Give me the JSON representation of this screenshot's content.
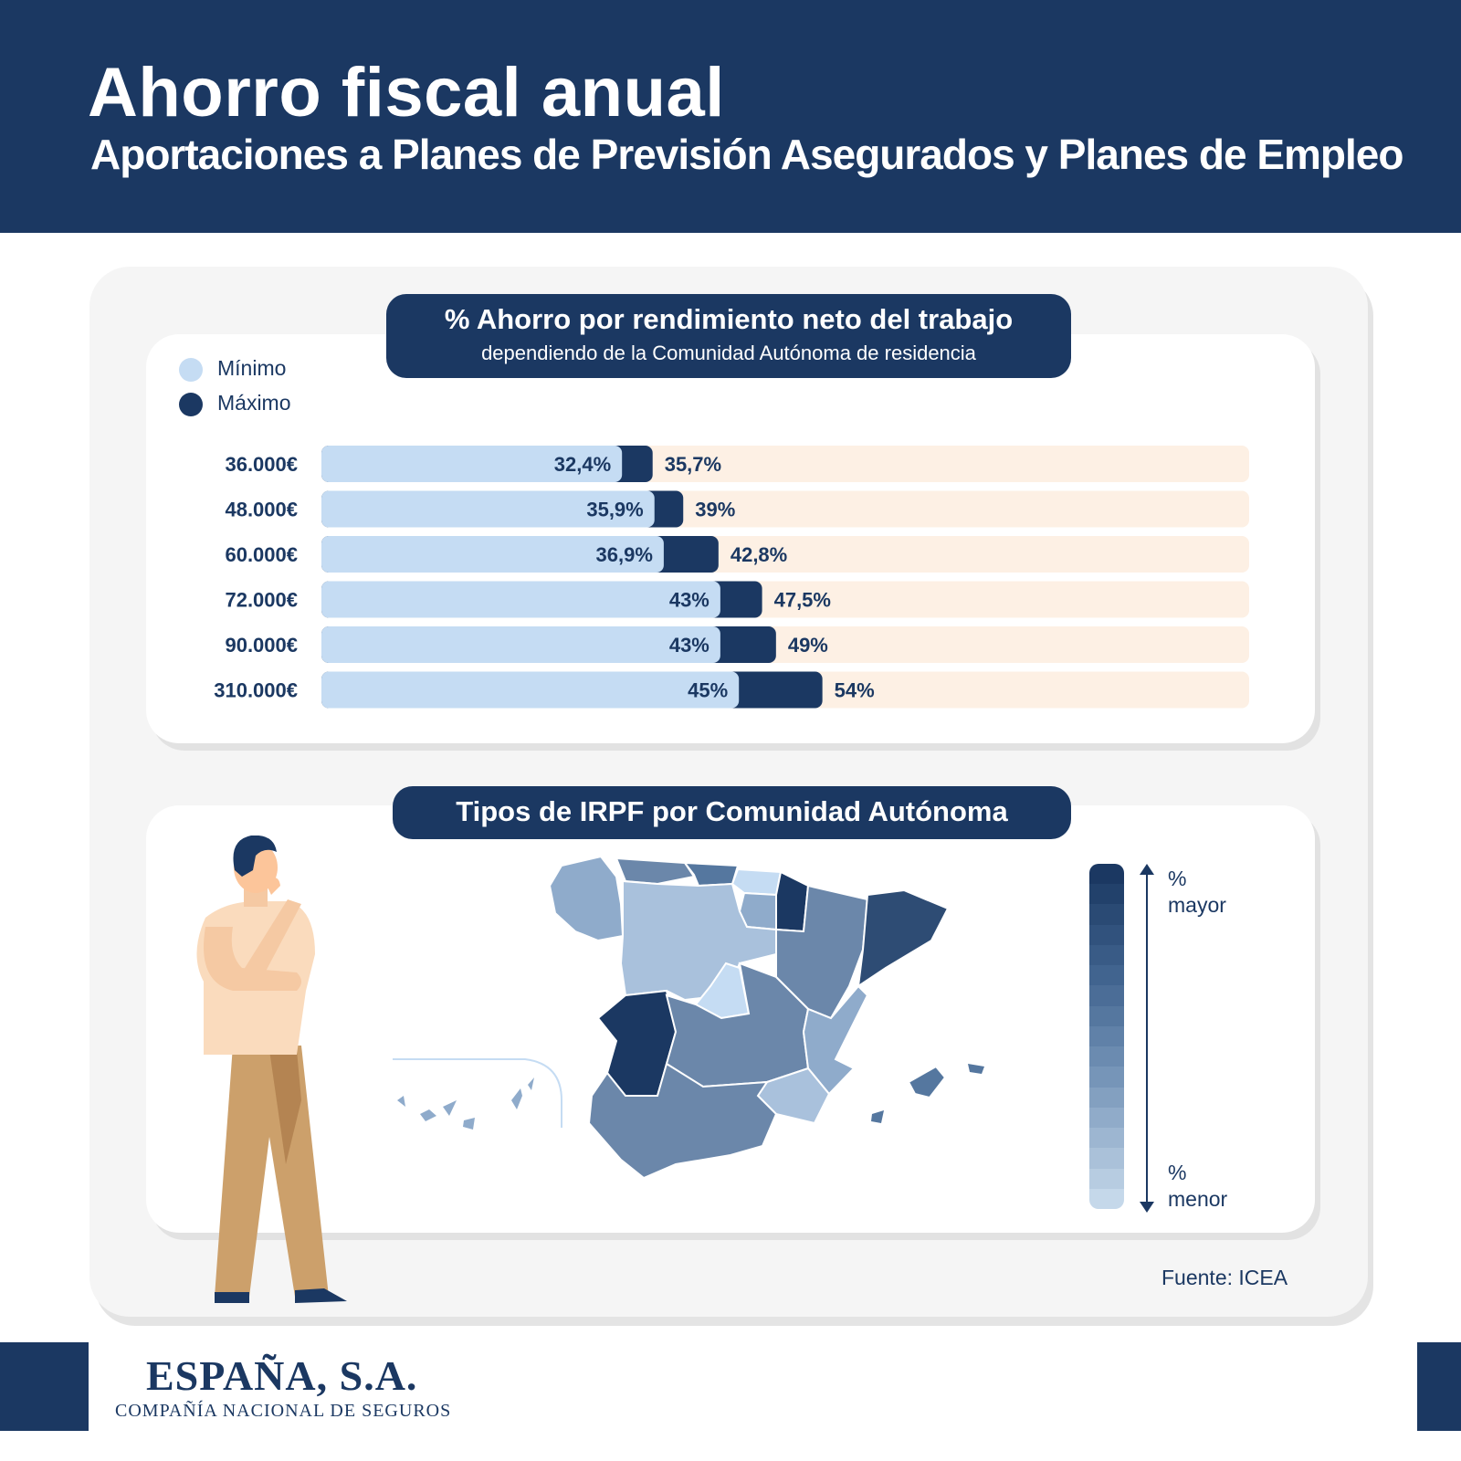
{
  "header": {
    "title": "Ahorro fiscal anual",
    "subtitle": "Aportaciones a Planes de Previsión Asegurados y Planes de Empleo"
  },
  "bars_section": {
    "title": "% Ahorro por rendimiento neto del trabajo",
    "subtitle": "dependiendo de la Comunidad Autónoma de residencia",
    "legend": [
      {
        "label": "Mínimo",
        "color": "#c5dcf3"
      },
      {
        "label": "Máximo",
        "color": "#1b3862"
      }
    ]
  },
  "map_section": {
    "title": "Tipos de IRPF por Comunidad Autónoma",
    "scale_top": [
      "%",
      "mayor"
    ],
    "scale_bottom": [
      "%",
      "menor"
    ],
    "scale_colors": [
      "#1b3862",
      "#22416b",
      "#2a4a74",
      "#31527d",
      "#395b86",
      "#41648f",
      "#4b6d97",
      "#55779f",
      "#6081a8",
      "#6b8bb0",
      "#7695b8",
      "#83a0c0",
      "#90abc9",
      "#9db6d1",
      "#aac1d9",
      "#b7cce1",
      "#c5d8ea"
    ]
  },
  "source": "Fuente: ICEA",
  "brand": {
    "name": "ESPAÑA, S.A.",
    "tagline": "COMPAÑÍA NACIONAL DE SEGUROS"
  },
  "colors": {
    "navy": "#1b3862",
    "min_bar": "#c5dcf3",
    "track": "#fdf0e4",
    "map_light": "#c5dcf3",
    "map_mid": "#a9c1dc",
    "map_blue": "#8fabcb",
    "map_steel": "#6b87aa",
    "map_dark": "#2e4c74",
    "map_darkest": "#1b3862"
  },
  "chart_data": {
    "type": "bar",
    "orientation": "horizontal",
    "title": "% Ahorro por rendimiento neto del trabajo",
    "subtitle": "dependiendo de la Comunidad Autónoma de residencia",
    "categories": [
      "36.000€",
      "48.000€",
      "60.000€",
      "72.000€",
      "90.000€",
      "310.000€"
    ],
    "series": [
      {
        "name": "Mínimo",
        "values": [
          32.4,
          35.9,
          36.9,
          43,
          43,
          45
        ],
        "labels": [
          "32,4%",
          "35,9%",
          "36,9%",
          "43%",
          "43%",
          "45%"
        ]
      },
      {
        "name": "Máximo",
        "values": [
          35.7,
          39,
          42.8,
          47.5,
          49,
          54
        ],
        "labels": [
          "35,7%",
          "39%",
          "42,8%",
          "47,5%",
          "49%",
          "54%"
        ]
      }
    ],
    "xlim": [
      0,
      100
    ],
    "legend_position": "top-left",
    "grid": false
  }
}
